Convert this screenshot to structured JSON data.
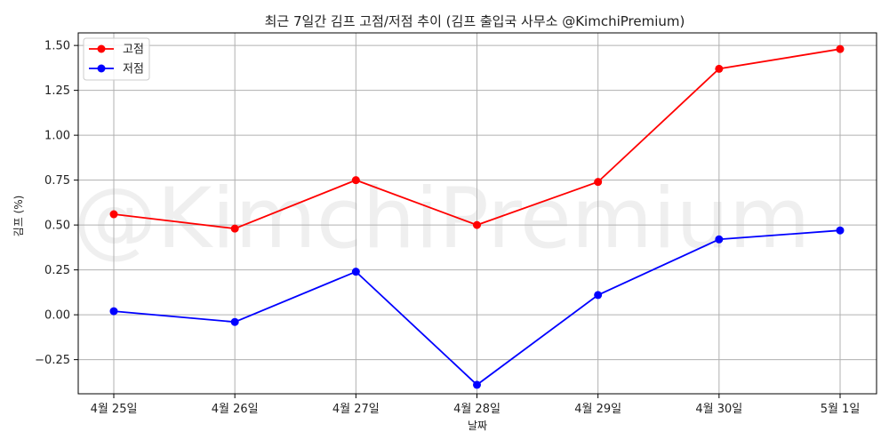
{
  "chart_data": {
    "type": "line",
    "title": "최근 7일간 김프 고점/저점 추이 (김프 출입국 사무소 @KimchiPremium)",
    "xlabel": "날짜",
    "ylabel": "김프 (%)",
    "watermark": "@KimchiPremium",
    "categories": [
      "4월 25일",
      "4월 26일",
      "4월 27일",
      "4월 28일",
      "4월 29일",
      "4월 30일",
      "5월 1일"
    ],
    "ylim": [
      -0.44,
      1.57
    ],
    "yticks": [
      -0.25,
      0,
      0.25,
      0.5,
      0.75,
      1.0,
      1.25,
      1.5
    ],
    "ytick_labels": [
      "−0.25",
      "0.00",
      "0.25",
      "0.50",
      "0.75",
      "1.00",
      "1.25",
      "1.50"
    ],
    "grid": true,
    "legend_position": "top-left",
    "series": [
      {
        "name": "고점",
        "color": "#ff0000",
        "values": [
          0.56,
          0.48,
          0.75,
          0.5,
          0.74,
          1.37,
          1.48
        ]
      },
      {
        "name": "저점",
        "color": "#0000ff",
        "values": [
          0.02,
          -0.04,
          0.24,
          -0.39,
          0.11,
          0.42,
          0.47
        ]
      }
    ]
  }
}
